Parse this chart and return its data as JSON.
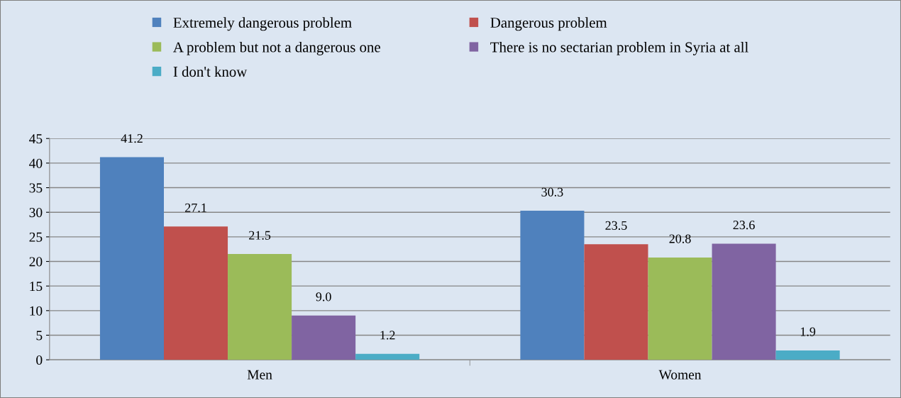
{
  "chart_data": {
    "type": "bar",
    "categories": [
      "Men",
      "Women"
    ],
    "series": [
      {
        "name": "Extremely dangerous problem",
        "color": "#4f81bd",
        "values": [
          41.2,
          30.3
        ],
        "value_labels": [
          "41.2",
          "30.3"
        ]
      },
      {
        "name": "Dangerous problem",
        "color": "#c0504d",
        "values": [
          27.1,
          23.5
        ],
        "value_labels": [
          "27.1",
          "23.5"
        ]
      },
      {
        "name": "A problem but not a dangerous one",
        "color": "#9bbb59",
        "values": [
          21.5,
          20.8
        ],
        "value_labels": [
          "21.5",
          "20.8"
        ]
      },
      {
        "name": "There is no sectarian problem in Syria at all",
        "color": "#8064a2",
        "values": [
          9.0,
          23.6
        ],
        "value_labels": [
          "9.0",
          "23.6"
        ]
      },
      {
        "name": "I don't know",
        "color": "#4bacc6",
        "values": [
          1.2,
          1.9
        ],
        "value_labels": [
          "1.2",
          "1.9"
        ]
      }
    ],
    "ylim": [
      0,
      45
    ],
    "yticks": [
      0,
      5,
      10,
      15,
      20,
      25,
      30,
      35,
      40,
      45
    ],
    "grid": "y",
    "legend": "top"
  }
}
